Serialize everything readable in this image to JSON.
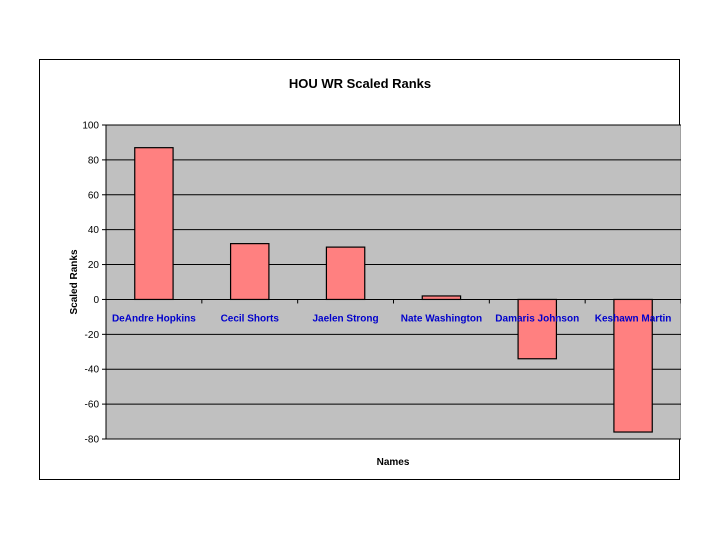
{
  "chart_data": {
    "type": "bar",
    "title": "HOU WR Scaled Ranks",
    "xlabel": "Names",
    "ylabel": "Scaled Ranks",
    "categories": [
      "DeAndre Hopkins",
      "Cecil Shorts",
      "Jaelen Strong",
      "Nate Washington",
      "Damaris Johnson",
      "Keshawn Martin"
    ],
    "values": [
      87,
      32,
      30,
      2,
      -34,
      -76
    ],
    "ylim": [
      -80,
      100
    ],
    "yticks": [
      100,
      80,
      60,
      40,
      20,
      0,
      -20,
      -40,
      -60,
      -80
    ],
    "grid": true,
    "legend": "none",
    "colors": {
      "bar_fill": "#ff8080",
      "bar_stroke": "#000000",
      "plot_background": "#c0c0c0",
      "category_label": "#0000cc",
      "gridline": "#000000"
    }
  }
}
